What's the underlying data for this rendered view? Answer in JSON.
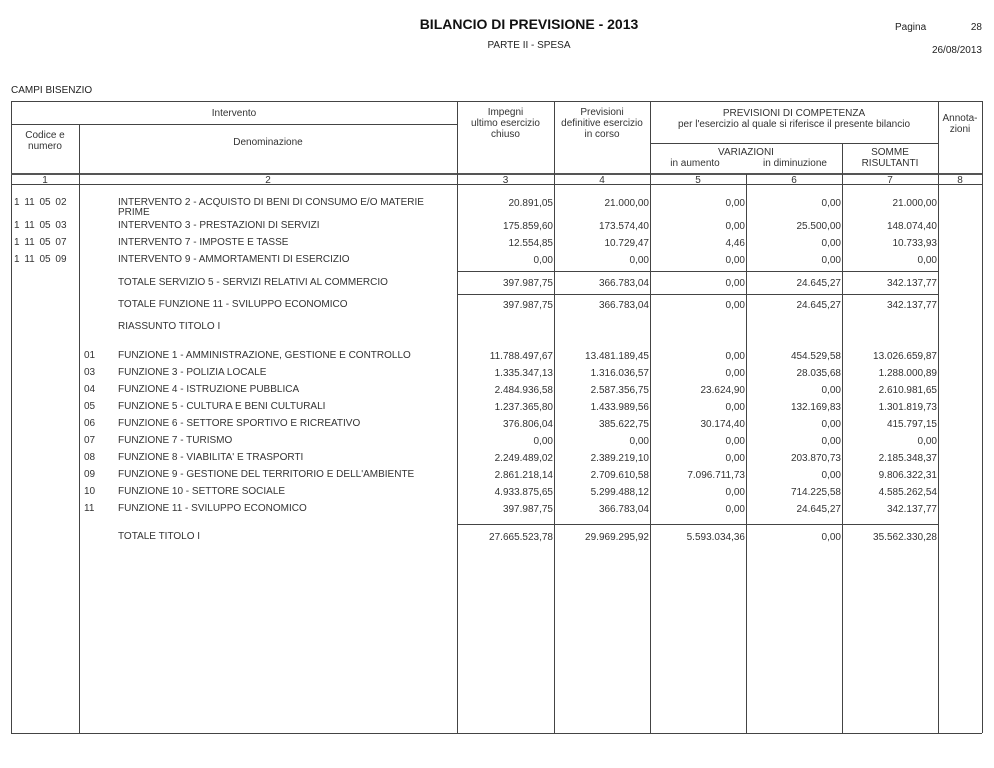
{
  "header": {
    "title": "BILANCIO DI PREVISIONE - 2013",
    "subtitle": "PARTE II - SPESA",
    "page_label": "Pagina",
    "page_number": "28",
    "date": "26/08/2013",
    "entity": "CAMPI BISENZIO"
  },
  "columns": {
    "intervento": "Intervento",
    "codice": "Codice e\nnumero",
    "denominazione": "Denominazione",
    "impegni": "Impegni\nultimo esercizio\nchiuso",
    "previsioni": "Previsioni\ndefinitive esercizio\nin corso",
    "competenza": "PREVISIONI DI COMPETENZA\nper l'esercizio al quale si riferisce il presente bilancio",
    "variazioni": "VARIAZIONI",
    "in_aumento": "in aumento",
    "in_diminuzione": "in diminuzione",
    "somme": "SOMME\nRISULTANTI",
    "annotazioni": "Annota-\nzioni",
    "numbers": [
      "1",
      "2",
      "3",
      "4",
      "5",
      "6",
      "7",
      "8"
    ]
  },
  "rows": [
    {
      "code": "1  11  05  02",
      "denom": "INTERVENTO 2 - ACQUISTO DI BENI DI CONSUMO E/O MATERIE\nPRIME",
      "values": [
        "20.891,05",
        "21.000,00",
        "0,00",
        "0,00",
        "21.000,00"
      ]
    },
    {
      "code": "1  11  05  03",
      "denom": "INTERVENTO 3 - PRESTAZIONI DI SERVIZI",
      "values": [
        "175.859,60",
        "173.574,40",
        "0,00",
        "25.500,00",
        "148.074,40"
      ]
    },
    {
      "code": "1  11  05  07",
      "denom": "INTERVENTO 7 - IMPOSTE E TASSE",
      "values": [
        "12.554,85",
        "10.729,47",
        "4,46",
        "0,00",
        "10.733,93"
      ]
    },
    {
      "code": "1  11  05  09",
      "denom": "INTERVENTO 9 - AMMORTAMENTI DI ESERCIZIO",
      "values": [
        "0,00",
        "0,00",
        "0,00",
        "0,00",
        "0,00"
      ]
    },
    {
      "code": "",
      "denom": "TOTALE SERVIZIO 5 - SERVIZI RELATIVI AL COMMERCIO",
      "values": [
        "397.987,75",
        "366.783,04",
        "0,00",
        "24.645,27",
        "342.137,77"
      ],
      "total": true
    },
    {
      "code": "",
      "denom": "TOTALE FUNZIONE 11 - SVILUPPO ECONOMICO",
      "values": [
        "397.987,75",
        "366.783,04",
        "0,00",
        "24.645,27",
        "342.137,77"
      ],
      "total": true
    },
    {
      "code": "",
      "denom": "RIASSUNTO TITOLO I",
      "values": []
    },
    {
      "code": "01",
      "denom": "FUNZIONE 1 - AMMINISTRAZIONE, GESTIONE E CONTROLLO",
      "values": [
        "11.788.497,67",
        "13.481.189,45",
        "0,00",
        "454.529,58",
        "13.026.659,87"
      ],
      "indent": true
    },
    {
      "code": "03",
      "denom": "FUNZIONE 3 - POLIZIA LOCALE",
      "values": [
        "1.335.347,13",
        "1.316.036,57",
        "0,00",
        "28.035,68",
        "1.288.000,89"
      ],
      "indent": true
    },
    {
      "code": "04",
      "denom": "FUNZIONE 4 - ISTRUZIONE PUBBLICA",
      "values": [
        "2.484.936,58",
        "2.587.356,75",
        "23.624,90",
        "0,00",
        "2.610.981,65"
      ],
      "indent": true
    },
    {
      "code": "05",
      "denom": "FUNZIONE 5 - CULTURA E BENI CULTURALI",
      "values": [
        "1.237.365,80",
        "1.433.989,56",
        "0,00",
        "132.169,83",
        "1.301.819,73"
      ],
      "indent": true
    },
    {
      "code": "06",
      "denom": "FUNZIONE 6 - SETTORE SPORTIVO E RICREATIVO",
      "values": [
        "376.806,04",
        "385.622,75",
        "30.174,40",
        "0,00",
        "415.797,15"
      ],
      "indent": true
    },
    {
      "code": "07",
      "denom": "FUNZIONE 7 - TURISMO",
      "values": [
        "0,00",
        "0,00",
        "0,00",
        "0,00",
        "0,00"
      ],
      "indent": true
    },
    {
      "code": "08",
      "denom": "FUNZIONE 8 - VIABILITA' E TRASPORTI",
      "values": [
        "2.249.489,02",
        "2.389.219,10",
        "0,00",
        "203.870,73",
        "2.185.348,37"
      ],
      "indent": true
    },
    {
      "code": "09",
      "denom": "FUNZIONE 9 - GESTIONE DEL TERRITORIO E DELL'AMBIENTE",
      "values": [
        "2.861.218,14",
        "2.709.610,58",
        "7.096.711,73",
        "0,00",
        "9.806.322,31"
      ],
      "indent": true
    },
    {
      "code": "10",
      "denom": "FUNZIONE 10 - SETTORE SOCIALE",
      "values": [
        "4.933.875,65",
        "5.299.488,12",
        "0,00",
        "714.225,58",
        "4.585.262,54"
      ],
      "indent": true
    },
    {
      "code": "11",
      "denom": "FUNZIONE 11 - SVILUPPO ECONOMICO",
      "values": [
        "397.987,75",
        "366.783,04",
        "0,00",
        "24.645,27",
        "342.137,77"
      ],
      "indent": true
    },
    {
      "code": "",
      "denom": "TOTALE TITOLO I",
      "values": [
        "27.665.523,78",
        "29.969.295,92",
        "5.593.034,36",
        "0,00",
        "35.562.330,28"
      ],
      "total": true
    }
  ]
}
